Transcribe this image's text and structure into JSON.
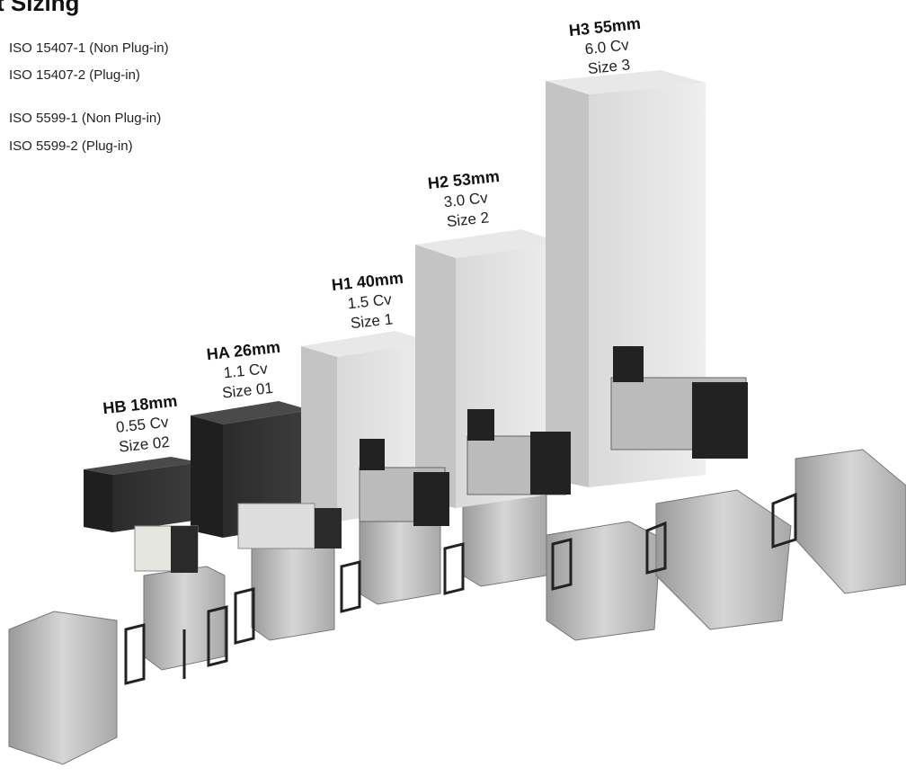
{
  "header": {
    "title": "t Sizing"
  },
  "standards": [
    "ISO 15407-1 (Non Plug-in)",
    "ISO 15407-2 (Plug-in)",
    "ISO 5599-1  (Non Plug-in)",
    "ISO 5599-2  (Plug-in)"
  ],
  "products": [
    {
      "name": "HB 18mm",
      "flow": "0.55 Cv",
      "size": "Size 02"
    },
    {
      "name": "HA 26mm",
      "flow": "1.1 Cv",
      "size": "Size 01"
    },
    {
      "name": "H1 40mm",
      "flow": "1.5 Cv",
      "size": "Size 1"
    },
    {
      "name": "H2 53mm",
      "flow": "3.0 Cv",
      "size": "Size 2"
    },
    {
      "name": "H3 55mm",
      "flow": "6.0 Cv",
      "size": "Size 3"
    }
  ]
}
